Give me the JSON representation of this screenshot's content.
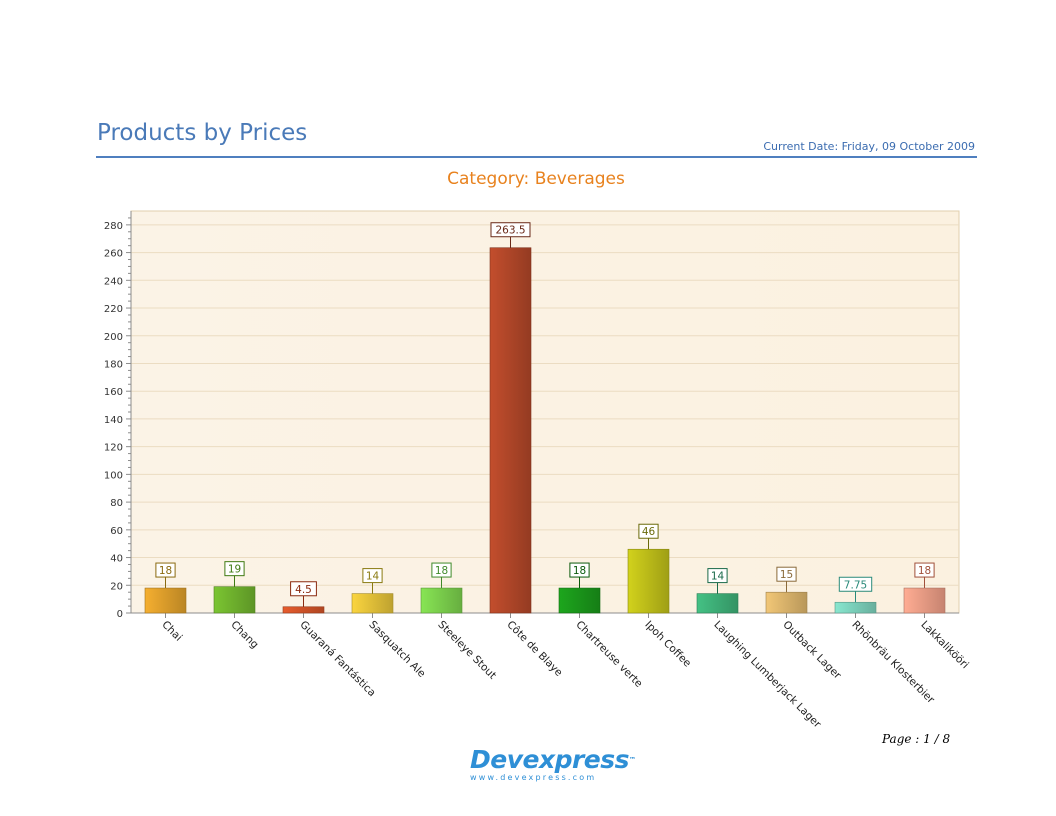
{
  "report": {
    "title": "Products by Prices",
    "current_date_label": "Current Date:",
    "current_date_value": "Friday, 09 October 2009",
    "page_label": "Page : 1 / 8"
  },
  "logo": {
    "text": "Devexpress",
    "trademark": "™",
    "url": "www.devexpress.com"
  },
  "chart_data": {
    "type": "bar",
    "title": "Category: Beverages",
    "xlabel": "",
    "ylabel": "",
    "ylim": [
      0,
      290
    ],
    "yticks": [
      0,
      20,
      40,
      60,
      80,
      100,
      120,
      140,
      160,
      180,
      200,
      220,
      240,
      260,
      280
    ],
    "grid": true,
    "categories": [
      "Chai",
      "Chang",
      "Guaraná Fantástica",
      "Sasquatch Ale",
      "Steeleye Stout",
      "Côte de Blaye",
      "Chartreuse verte",
      "Ipoh Coffee",
      "Laughing Lumberjack Lager",
      "Outback Lager",
      "Rhönbräu Klosterbier",
      "Lakkalikööri"
    ],
    "values": [
      18,
      19,
      4.5,
      14,
      18,
      263.5,
      18,
      46,
      14,
      15,
      7.75,
      18
    ],
    "labels": [
      "18",
      "19",
      "4.5",
      "14",
      "18",
      "263.5",
      "18",
      "46",
      "14",
      "15",
      "7.75",
      "18"
    ],
    "colors": [
      "#e3a22c",
      "#72b62e",
      "#d6552a",
      "#e8c53a",
      "#7ed44e",
      "#b5482a",
      "#1b9a1b",
      "#c2c21a",
      "#3fb37a",
      "#e0b86e",
      "#7fd6c0",
      "#f2a088"
    ],
    "label_colors": [
      "#8a6a10",
      "#3f7a12",
      "#8a2a10",
      "#8a7a10",
      "#3f8a2a",
      "#6a2a18",
      "#0a5a0a",
      "#6a6a0a",
      "#1a6a4a",
      "#8a6a3a",
      "#2a8a7a",
      "#a0503a"
    ]
  }
}
